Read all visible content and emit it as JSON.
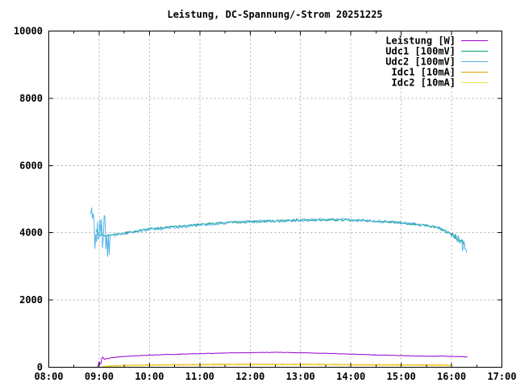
{
  "page": {
    "background": "#ffffff"
  },
  "style": {
    "grid_color": "#b0b0b0",
    "axis_color": "#000000",
    "text_color": "#000000",
    "background": "#ffffff"
  },
  "chart_data": {
    "type": "line",
    "title": "Leistung, DC-Spannung/-Strom 20251225",
    "xlabel": "",
    "ylabel": "",
    "x_range": [
      "08:00",
      "17:00"
    ],
    "ylim": [
      0,
      10000
    ],
    "y_ticks": [
      0,
      2000,
      4000,
      6000,
      8000,
      10000
    ],
    "y_tick_labels": [
      "0",
      "2000",
      "4000",
      "6000",
      "8000",
      "10000"
    ],
    "x_ticks_major": [
      "08:00",
      "09:00",
      "10:00",
      "11:00",
      "12:00",
      "13:00",
      "14:00",
      "15:00",
      "16:00",
      "17:00"
    ],
    "x_ticks_minor": [
      "08:30",
      "09:30",
      "10:30",
      "11:30",
      "12:30",
      "13:30",
      "14:30",
      "15:30",
      "16:30"
    ],
    "grid": true,
    "legend_position": "top-right-inside",
    "series": [
      {
        "name": "Leistung [W]",
        "color": "#9400d3",
        "noise": 7,
        "transients": [
          {
            "from": "08:58",
            "to": "09:05",
            "amp": 130
          }
        ],
        "points": [
          [
            "08:58",
            5
          ],
          [
            "09:01",
            90
          ],
          [
            "09:04",
            230
          ],
          [
            "09:15",
            285
          ],
          [
            "09:30",
            320
          ],
          [
            "10:00",
            360
          ],
          [
            "10:30",
            385
          ],
          [
            "11:00",
            405
          ],
          [
            "11:30",
            425
          ],
          [
            "12:00",
            435
          ],
          [
            "12:30",
            445
          ],
          [
            "13:00",
            430
          ],
          [
            "13:30",
            415
          ],
          [
            "14:00",
            390
          ],
          [
            "14:30",
            365
          ],
          [
            "15:00",
            345
          ],
          [
            "15:30",
            325
          ],
          [
            "15:50",
            330
          ],
          [
            "16:05",
            320
          ],
          [
            "16:19",
            308
          ]
        ]
      },
      {
        "name": "Udc1 [100mV]",
        "color": "#009e73",
        "noise": 35,
        "transients": [
          {
            "from": "16:00",
            "to": "16:15",
            "amp": 90
          }
        ],
        "points": [
          [
            "08:56",
            4060
          ],
          [
            "09:00",
            3940
          ],
          [
            "09:10",
            3900
          ],
          [
            "09:20",
            3950
          ],
          [
            "09:30",
            3995
          ],
          [
            "09:45",
            4060
          ],
          [
            "10:00",
            4110
          ],
          [
            "10:30",
            4180
          ],
          [
            "11:00",
            4245
          ],
          [
            "11:30",
            4300
          ],
          [
            "12:00",
            4330
          ],
          [
            "12:30",
            4355
          ],
          [
            "13:00",
            4375
          ],
          [
            "13:30",
            4385
          ],
          [
            "14:00",
            4375
          ],
          [
            "14:30",
            4345
          ],
          [
            "15:00",
            4295
          ],
          [
            "15:15",
            4255
          ],
          [
            "15:30",
            4215
          ],
          [
            "15:45",
            4135
          ],
          [
            "16:00",
            3960
          ],
          [
            "16:08",
            3810
          ],
          [
            "16:15",
            3720
          ]
        ]
      },
      {
        "name": "Udc2 [100mV]",
        "color": "#56b4e9",
        "noise": 50,
        "transients": [
          {
            "from": "08:50",
            "to": "09:12",
            "amp": 650
          },
          {
            "from": "16:03",
            "to": "16:18",
            "amp": 200
          }
        ],
        "points": [
          [
            "08:50",
            4150
          ],
          [
            "08:55",
            3990
          ],
          [
            "09:00",
            3900
          ],
          [
            "09:10",
            3880
          ],
          [
            "09:20",
            3935
          ],
          [
            "09:30",
            3975
          ],
          [
            "09:45",
            4045
          ],
          [
            "10:00",
            4095
          ],
          [
            "10:30",
            4165
          ],
          [
            "11:00",
            4230
          ],
          [
            "11:30",
            4290
          ],
          [
            "12:00",
            4325
          ],
          [
            "12:30",
            4360
          ],
          [
            "13:00",
            4380
          ],
          [
            "13:30",
            4390
          ],
          [
            "14:00",
            4380
          ],
          [
            "14:30",
            4350
          ],
          [
            "15:00",
            4300
          ],
          [
            "15:15",
            4260
          ],
          [
            "15:30",
            4220
          ],
          [
            "15:45",
            4140
          ],
          [
            "16:00",
            3940
          ],
          [
            "16:05",
            3820
          ],
          [
            "16:10",
            3700
          ],
          [
            "16:15",
            3560
          ],
          [
            "16:18",
            3460
          ]
        ]
      },
      {
        "name": "Idc1 [10mA]",
        "color": "#e69f00",
        "noise": 6,
        "transients": [],
        "points": [
          [
            "09:03",
            15
          ],
          [
            "09:15",
            40
          ],
          [
            "09:30",
            55
          ],
          [
            "10:00",
            70
          ],
          [
            "10:30",
            78
          ],
          [
            "11:00",
            83
          ],
          [
            "11:30",
            86
          ],
          [
            "12:00",
            88
          ],
          [
            "12:30",
            89
          ],
          [
            "13:00",
            87
          ],
          [
            "13:30",
            84
          ],
          [
            "14:00",
            80
          ],
          [
            "14:30",
            76
          ],
          [
            "15:00",
            72
          ],
          [
            "15:30",
            68
          ],
          [
            "16:00",
            60
          ]
        ]
      },
      {
        "name": "Idc2 [10mA]",
        "color": "#f0e442",
        "noise": 5,
        "transients": [],
        "points": [
          [
            "09:03",
            10
          ],
          [
            "09:30",
            42
          ],
          [
            "10:00",
            55
          ],
          [
            "10:30",
            62
          ],
          [
            "11:00",
            66
          ],
          [
            "11:30",
            69
          ],
          [
            "12:00",
            71
          ],
          [
            "12:30",
            72
          ],
          [
            "13:00",
            70
          ],
          [
            "13:30",
            67
          ],
          [
            "14:00",
            64
          ],
          [
            "14:30",
            60
          ],
          [
            "15:00",
            56
          ],
          [
            "15:30",
            52
          ],
          [
            "16:00",
            45
          ]
        ]
      }
    ]
  }
}
